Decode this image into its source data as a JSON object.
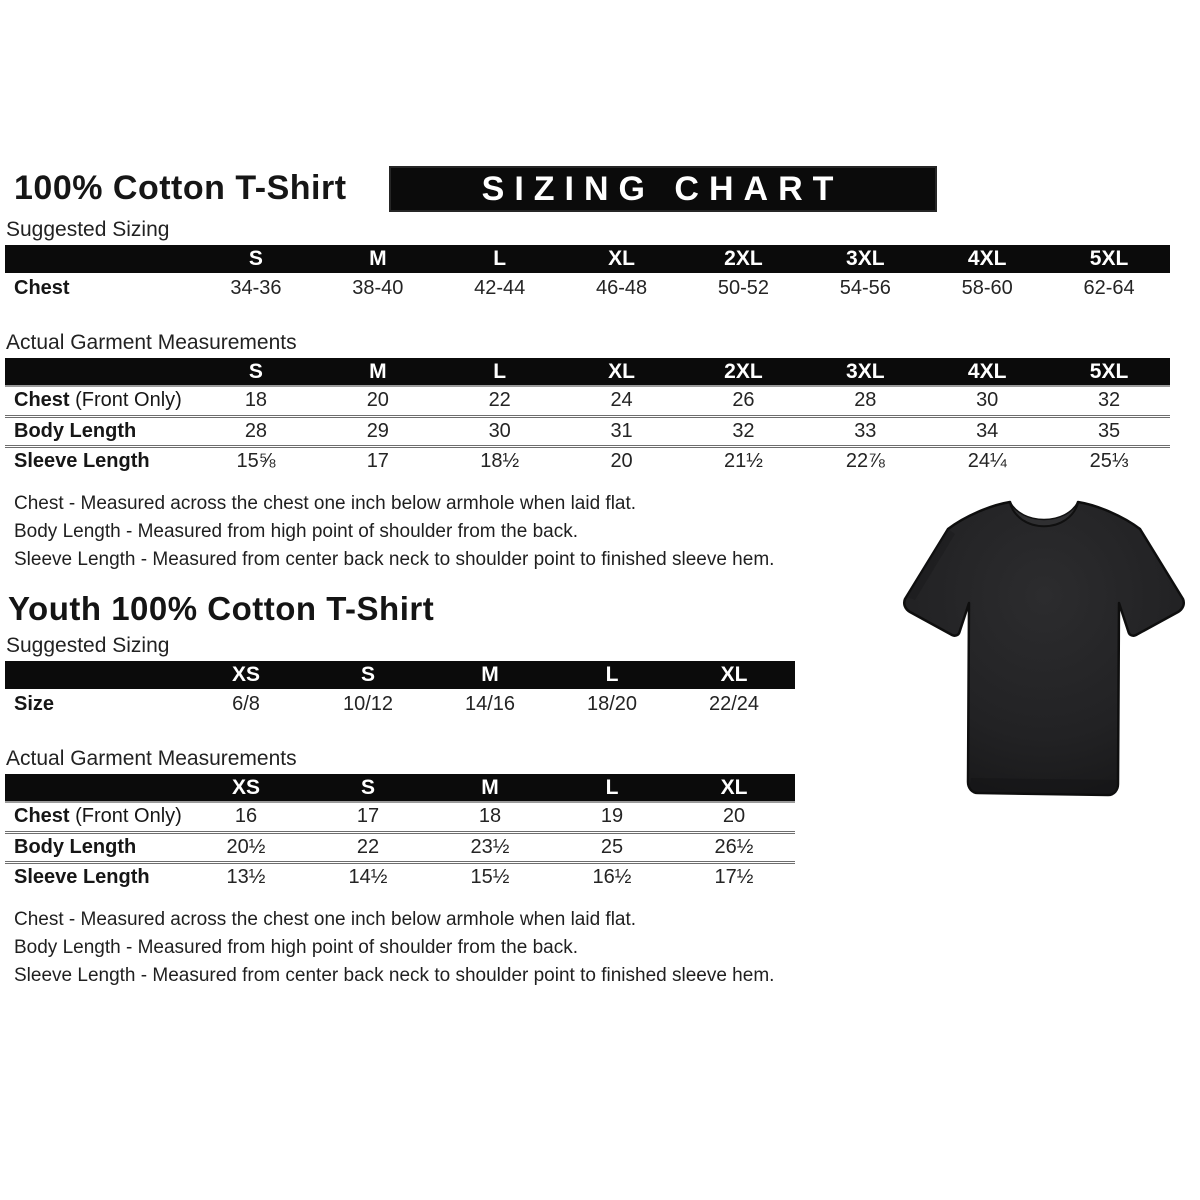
{
  "page": {
    "title": "100% Cotton T-Shirt",
    "banner_title": "SIZING CHART",
    "youth_title": "Youth 100% Cotton T-Shirt",
    "suggested_sizing_label": "Suggested Sizing",
    "actual_measurements_label": "Actual Garment Measurements",
    "colors": {
      "header_bar": "#0b0b0b",
      "text": "#1c1c1c",
      "shirt": "#202022"
    },
    "tshirt_image": "black-cotton-tshirt-front-view"
  },
  "adult": {
    "suggested": {
      "columns": [
        "S",
        "M",
        "L",
        "XL",
        "2XL",
        "3XL",
        "4XL",
        "5XL"
      ],
      "rows": [
        {
          "label": "Chest",
          "suffix": "",
          "values": [
            "34-36",
            "38-40",
            "42-44",
            "46-48",
            "50-52",
            "54-56",
            "58-60",
            "62-64"
          ]
        }
      ]
    },
    "measurements": {
      "columns": [
        "S",
        "M",
        "L",
        "XL",
        "2XL",
        "3XL",
        "4XL",
        "5XL"
      ],
      "rows": [
        {
          "label": "Chest",
          "suffix": " (Front Only)",
          "values": [
            "18",
            "20",
            "22",
            "24",
            "26",
            "28",
            "30",
            "32"
          ]
        },
        {
          "label": "Body Length",
          "suffix": "",
          "values": [
            "28",
            "29",
            "30",
            "31",
            "32",
            "33",
            "34",
            "35"
          ]
        },
        {
          "label": "Sleeve Length",
          "suffix": "",
          "values": [
            "15⅝",
            "17",
            "18½",
            "20",
            "21½",
            "22⅞",
            "24¼",
            "25⅓"
          ]
        }
      ]
    },
    "notes": [
      "Chest - Measured across the chest one inch below armhole when laid flat.",
      "Body Length - Measured from high point of shoulder from the back.",
      "Sleeve Length - Measured from center back neck to shoulder point to finished sleeve hem."
    ]
  },
  "youth": {
    "suggested": {
      "columns": [
        "XS",
        "S",
        "M",
        "L",
        "XL"
      ],
      "rows": [
        {
          "label": "Size",
          "suffix": "",
          "values": [
            "6/8",
            "10/12",
            "14/16",
            "18/20",
            "22/24"
          ]
        }
      ]
    },
    "measurements": {
      "columns": [
        "XS",
        "S",
        "M",
        "L",
        "XL"
      ],
      "rows": [
        {
          "label": "Chest",
          "suffix": " (Front Only)",
          "values": [
            "16",
            "17",
            "18",
            "19",
            "20"
          ]
        },
        {
          "label": "Body Length",
          "suffix": "",
          "values": [
            "20½",
            "22",
            "23½",
            "25",
            "26½"
          ]
        },
        {
          "label": "Sleeve Length",
          "suffix": "",
          "values": [
            "13½",
            "14½",
            "15½",
            "16½",
            "17½"
          ]
        }
      ]
    },
    "notes": [
      "Chest - Measured across the chest one inch below armhole when laid flat.",
      "Body Length - Measured from high point of shoulder from the back.",
      "Sleeve Length - Measured from center back neck to shoulder point to finished sleeve hem."
    ]
  }
}
